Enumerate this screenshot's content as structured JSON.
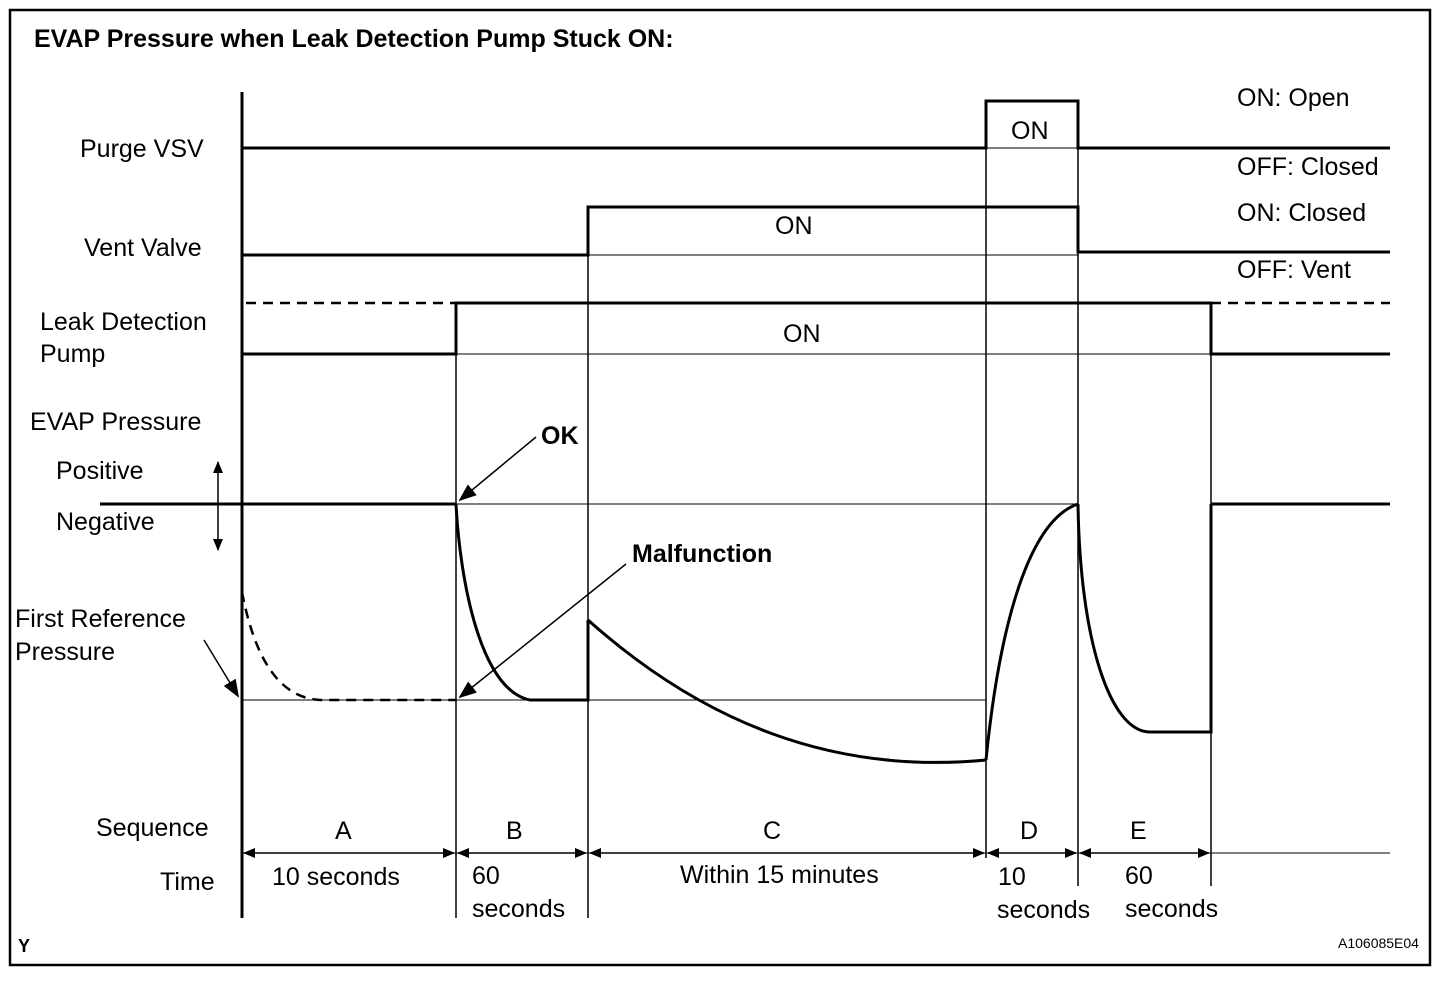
{
  "title": "EVAP Pressure when Leak Detection Pump Stuck ON:",
  "signals": {
    "purge_vsv": {
      "label": "Purge VSV",
      "on_text": "ON",
      "legend_on": "ON: Open",
      "legend_off": "OFF: Closed"
    },
    "vent_valve": {
      "label": "Vent Valve",
      "on_text": "ON",
      "legend_on": "ON: Closed",
      "legend_off": "OFF: Vent"
    },
    "leak_pump": {
      "label_line1": "Leak Detection",
      "label_line2": "Pump",
      "on_text": "ON"
    }
  },
  "pressure": {
    "label": "EVAP Pressure",
    "positive": "Positive",
    "negative": "Negative",
    "ref_line1": "First Reference",
    "ref_line2": "Pressure",
    "ok": "OK",
    "malfunction": "Malfunction"
  },
  "sequence_label": "Sequence",
  "time_label": "Time",
  "phases": [
    {
      "id": "A",
      "time_line1": "10 seconds",
      "time_line2": ""
    },
    {
      "id": "B",
      "time_line1": "60",
      "time_line2": "seconds"
    },
    {
      "id": "C",
      "time_line1": "Within 15 minutes",
      "time_line2": ""
    },
    {
      "id": "D",
      "time_line1": "10",
      "time_line2": "seconds"
    },
    {
      "id": "E",
      "time_line1": "60",
      "time_line2": "seconds"
    }
  ],
  "corner_left": "Y",
  "corner_right": "A106085E04"
}
